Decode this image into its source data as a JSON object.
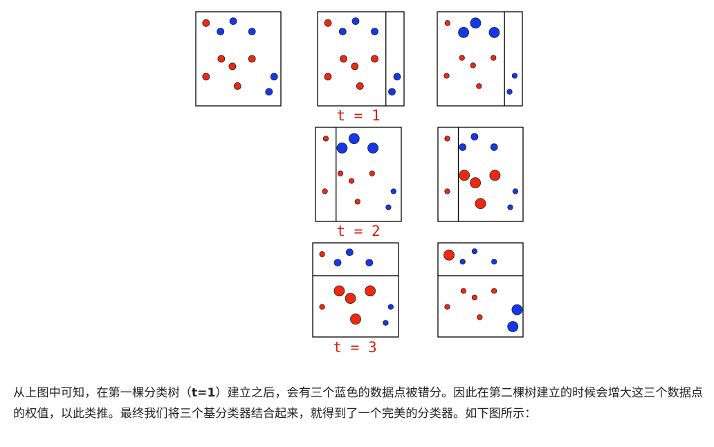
{
  "figure": {
    "colors": {
      "red": "#ed2a11",
      "blue": "#1438e8",
      "label": "#d81b0c",
      "outline": "#000000"
    },
    "panels": [
      {
        "name": "panel-initial",
        "lines": [],
        "points": [
          {
            "c": "red",
            "s": 1,
            "x": 0.12,
            "y": 0.12
          },
          {
            "c": "blue",
            "s": 1,
            "x": 0.29,
            "y": 0.21
          },
          {
            "c": "blue",
            "s": 1,
            "x": 0.44,
            "y": 0.1
          },
          {
            "c": "blue",
            "s": 1,
            "x": 0.66,
            "y": 0.21
          },
          {
            "c": "red",
            "s": 1,
            "x": 0.3,
            "y": 0.5
          },
          {
            "c": "red",
            "s": 1,
            "x": 0.43,
            "y": 0.58
          },
          {
            "c": "red",
            "s": 1,
            "x": 0.66,
            "y": 0.5
          },
          {
            "c": "red",
            "s": 1,
            "x": 0.12,
            "y": 0.69
          },
          {
            "c": "red",
            "s": 1,
            "x": 0.49,
            "y": 0.79
          },
          {
            "c": "blue",
            "s": 1,
            "x": 0.92,
            "y": 0.69
          },
          {
            "c": "blue",
            "s": 1,
            "x": 0.86,
            "y": 0.85
          }
        ]
      },
      {
        "name": "panel-t1-split",
        "lines": [
          {
            "o": "v",
            "p": 0.79
          }
        ],
        "points": [
          {
            "c": "red",
            "s": 1,
            "x": 0.12,
            "y": 0.12
          },
          {
            "c": "blue",
            "s": 1,
            "x": 0.29,
            "y": 0.21
          },
          {
            "c": "blue",
            "s": 1,
            "x": 0.44,
            "y": 0.1
          },
          {
            "c": "blue",
            "s": 1,
            "x": 0.66,
            "y": 0.21
          },
          {
            "c": "red",
            "s": 1,
            "x": 0.3,
            "y": 0.5
          },
          {
            "c": "red",
            "s": 1,
            "x": 0.43,
            "y": 0.58
          },
          {
            "c": "red",
            "s": 1,
            "x": 0.66,
            "y": 0.5
          },
          {
            "c": "red",
            "s": 1,
            "x": 0.12,
            "y": 0.69
          },
          {
            "c": "red",
            "s": 1,
            "x": 0.49,
            "y": 0.79
          },
          {
            "c": "blue",
            "s": 1,
            "x": 0.92,
            "y": 0.69
          },
          {
            "c": "blue",
            "s": 1,
            "x": 0.86,
            "y": 0.85
          }
        ]
      },
      {
        "name": "panel-t1-weights",
        "lines": [
          {
            "o": "v",
            "p": 0.79
          }
        ],
        "points": [
          {
            "c": "red",
            "s": 0.75,
            "x": 0.12,
            "y": 0.12
          },
          {
            "c": "blue",
            "s": 1.5,
            "x": 0.31,
            "y": 0.22
          },
          {
            "c": "blue",
            "s": 1.5,
            "x": 0.45,
            "y": 0.12
          },
          {
            "c": "blue",
            "s": 1.5,
            "x": 0.67,
            "y": 0.22
          },
          {
            "c": "red",
            "s": 0.75,
            "x": 0.29,
            "y": 0.49
          },
          {
            "c": "red",
            "s": 0.75,
            "x": 0.42,
            "y": 0.57
          },
          {
            "c": "red",
            "s": 0.75,
            "x": 0.66,
            "y": 0.49
          },
          {
            "c": "red",
            "s": 0.75,
            "x": 0.11,
            "y": 0.68
          },
          {
            "c": "red",
            "s": 0.75,
            "x": 0.49,
            "y": 0.79
          },
          {
            "c": "blue",
            "s": 0.75,
            "x": 0.91,
            "y": 0.68
          },
          {
            "c": "blue",
            "s": 0.75,
            "x": 0.85,
            "y": 0.85
          }
        ]
      },
      {
        "name": "panel-t2-split",
        "lines": [
          {
            "o": "v",
            "p": 0.24
          }
        ],
        "points": [
          {
            "c": "red",
            "s": 0.75,
            "x": 0.12,
            "y": 0.12
          },
          {
            "c": "blue",
            "s": 1.5,
            "x": 0.31,
            "y": 0.22
          },
          {
            "c": "blue",
            "s": 1.5,
            "x": 0.45,
            "y": 0.12
          },
          {
            "c": "blue",
            "s": 1.5,
            "x": 0.67,
            "y": 0.22
          },
          {
            "c": "red",
            "s": 0.75,
            "x": 0.29,
            "y": 0.49
          },
          {
            "c": "red",
            "s": 0.75,
            "x": 0.42,
            "y": 0.57
          },
          {
            "c": "red",
            "s": 0.75,
            "x": 0.66,
            "y": 0.49
          },
          {
            "c": "red",
            "s": 0.75,
            "x": 0.11,
            "y": 0.68
          },
          {
            "c": "red",
            "s": 0.75,
            "x": 0.49,
            "y": 0.79
          },
          {
            "c": "blue",
            "s": 0.75,
            "x": 0.91,
            "y": 0.68
          },
          {
            "c": "blue",
            "s": 0.75,
            "x": 0.85,
            "y": 0.85
          }
        ]
      },
      {
        "name": "panel-t2-weights",
        "lines": [
          {
            "o": "v",
            "p": 0.24
          }
        ],
        "points": [
          {
            "c": "red",
            "s": 0.75,
            "x": 0.11,
            "y": 0.12
          },
          {
            "c": "blue",
            "s": 1,
            "x": 0.29,
            "y": 0.21
          },
          {
            "c": "blue",
            "s": 1,
            "x": 0.43,
            "y": 0.1
          },
          {
            "c": "blue",
            "s": 1,
            "x": 0.66,
            "y": 0.21
          },
          {
            "c": "red",
            "s": 1.5,
            "x": 0.31,
            "y": 0.51
          },
          {
            "c": "red",
            "s": 1.5,
            "x": 0.44,
            "y": 0.59
          },
          {
            "c": "red",
            "s": 1.5,
            "x": 0.67,
            "y": 0.51
          },
          {
            "c": "red",
            "s": 0.75,
            "x": 0.11,
            "y": 0.68
          },
          {
            "c": "red",
            "s": 1.5,
            "x": 0.5,
            "y": 0.81
          },
          {
            "c": "blue",
            "s": 0.75,
            "x": 0.91,
            "y": 0.68
          },
          {
            "c": "blue",
            "s": 0.75,
            "x": 0.85,
            "y": 0.85
          }
        ]
      },
      {
        "name": "panel-t3-split",
        "lines": [
          {
            "o": "h",
            "p": 0.35
          }
        ],
        "points": [
          {
            "c": "red",
            "s": 0.75,
            "x": 0.11,
            "y": 0.12
          },
          {
            "c": "blue",
            "s": 1,
            "x": 0.29,
            "y": 0.21
          },
          {
            "c": "blue",
            "s": 1,
            "x": 0.43,
            "y": 0.1
          },
          {
            "c": "blue",
            "s": 1,
            "x": 0.66,
            "y": 0.21
          },
          {
            "c": "red",
            "s": 1.5,
            "x": 0.31,
            "y": 0.51
          },
          {
            "c": "red",
            "s": 1.5,
            "x": 0.44,
            "y": 0.59
          },
          {
            "c": "red",
            "s": 1.5,
            "x": 0.67,
            "y": 0.51
          },
          {
            "c": "red",
            "s": 0.75,
            "x": 0.11,
            "y": 0.68
          },
          {
            "c": "red",
            "s": 1.5,
            "x": 0.5,
            "y": 0.81
          },
          {
            "c": "blue",
            "s": 0.75,
            "x": 0.91,
            "y": 0.68
          },
          {
            "c": "blue",
            "s": 0.75,
            "x": 0.85,
            "y": 0.85
          }
        ]
      },
      {
        "name": "panel-t3-weights",
        "lines": [
          {
            "o": "h",
            "p": 0.35
          }
        ],
        "points": [
          {
            "c": "red",
            "s": 1.5,
            "x": 0.13,
            "y": 0.13
          },
          {
            "c": "blue",
            "s": 0.75,
            "x": 0.29,
            "y": 0.2
          },
          {
            "c": "blue",
            "s": 0.75,
            "x": 0.43,
            "y": 0.09
          },
          {
            "c": "blue",
            "s": 0.75,
            "x": 0.66,
            "y": 0.2
          },
          {
            "c": "red",
            "s": 0.75,
            "x": 0.3,
            "y": 0.51
          },
          {
            "c": "red",
            "s": 0.75,
            "x": 0.43,
            "y": 0.58
          },
          {
            "c": "red",
            "s": 0.75,
            "x": 0.66,
            "y": 0.51
          },
          {
            "c": "red",
            "s": 0.75,
            "x": 0.11,
            "y": 0.68
          },
          {
            "c": "red",
            "s": 0.75,
            "x": 0.49,
            "y": 0.79
          },
          {
            "c": "blue",
            "s": 1.5,
            "x": 0.93,
            "y": 0.71
          },
          {
            "c": "blue",
            "s": 1.5,
            "x": 0.88,
            "y": 0.89
          }
        ]
      }
    ],
    "labels": {
      "t1": "t = 1",
      "t2": "t = 2",
      "t3": "t = 3"
    }
  },
  "paragraph": {
    "part1": "从上图中可知，在第一棵分类树（",
    "bold": "t=1",
    "part2": "）建立之后，会有三个蓝色的数据点被错分。因此在第二棵树建立的时候会增大这三个数据点的权值，以此类推。最终我们将三个基分类器结合起来，就得到了一个完美的分类器。如下图所示："
  }
}
